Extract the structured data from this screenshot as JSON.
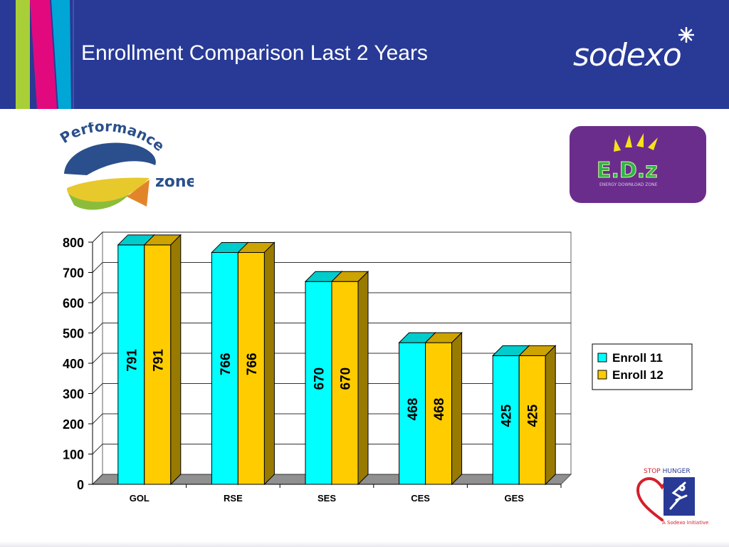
{
  "slide": {
    "title": "Enrollment Comparison Last 2 Years",
    "brand": "sodexo",
    "stripe_colors": [
      "#a9cf38",
      "#e2097f",
      "#00a6d6"
    ],
    "header_color": "#283a95"
  },
  "logos": {
    "performance_zone": {
      "line1": "Performance",
      "line2": "zone"
    },
    "edz": {
      "text": "E.D.z",
      "subtext": "ENERGY DOWNLOAD ZONE"
    },
    "stop_hunger": {
      "line1_a": "STOP",
      "line1_b": "HUNGER",
      "tagline": "A Sodexo Initiative"
    }
  },
  "chart_data": {
    "type": "bar",
    "categories": [
      "GOL",
      "RSE",
      "SES",
      "CES",
      "GES"
    ],
    "series": [
      {
        "name": "Enroll 11",
        "values": [
          791,
          766,
          670,
          468,
          425
        ],
        "color": "#00ffff"
      },
      {
        "name": "Enroll 12",
        "values": [
          791,
          766,
          670,
          468,
          425
        ],
        "color": "#ffcc00"
      }
    ],
    "data_labels": [
      [
        "791",
        "766",
        "670",
        "468",
        "425"
      ],
      [
        "791",
        "766",
        "670",
        "468",
        "425"
      ]
    ],
    "yticks": [
      "0",
      "100",
      "200",
      "300",
      "400",
      "500",
      "600",
      "700",
      "800"
    ],
    "ylim": [
      0,
      800
    ],
    "grid": true,
    "legend": "right",
    "style": "3d"
  }
}
